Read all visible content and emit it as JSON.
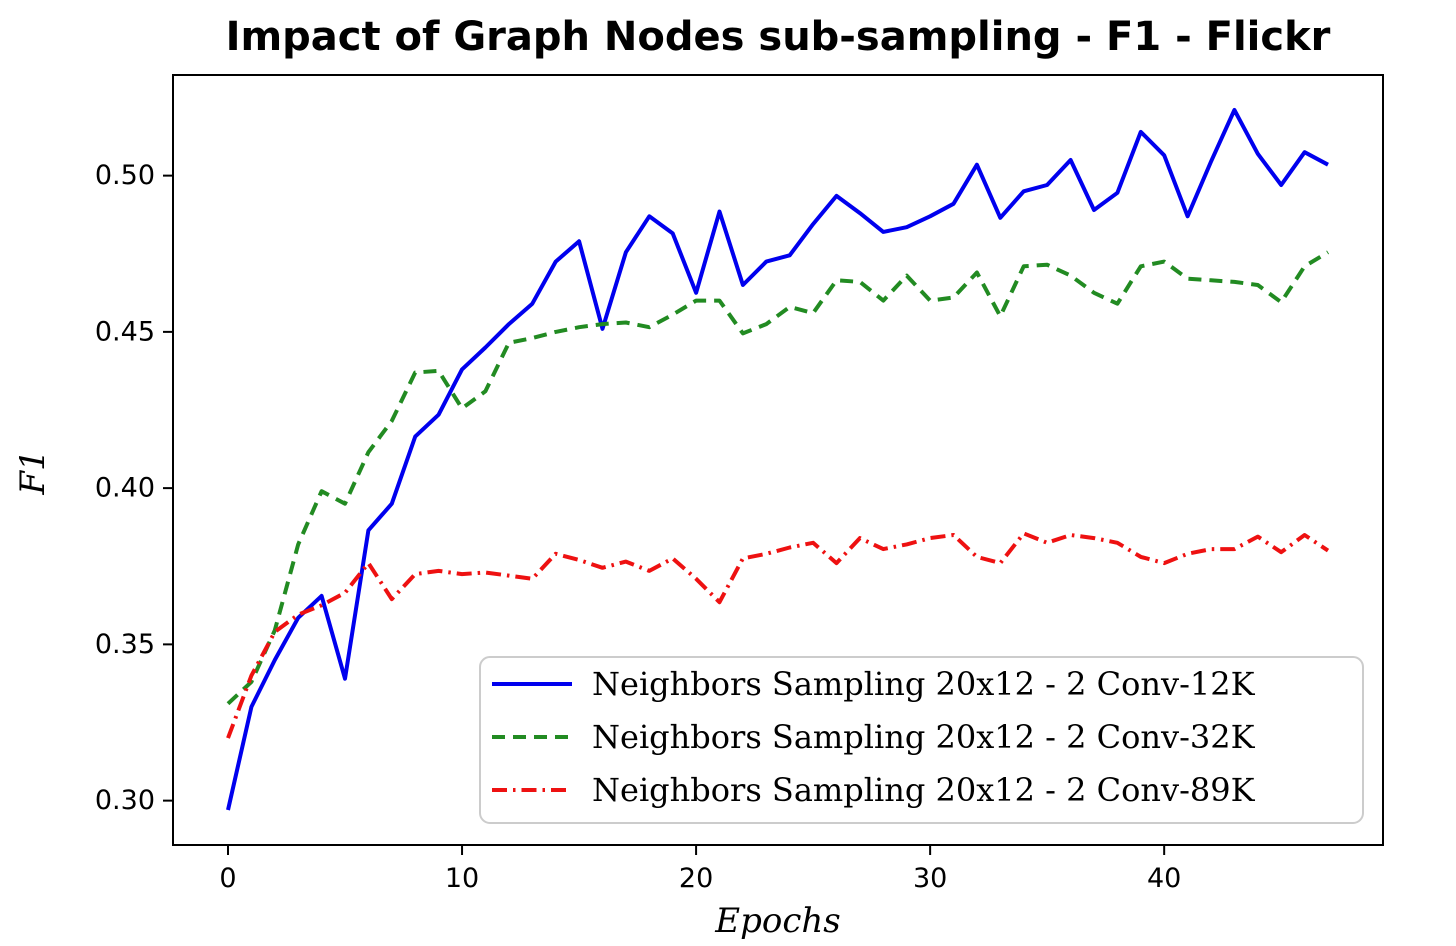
{
  "page": {
    "background": "#ffffff",
    "axis_color": "#000000",
    "legend_border_color": "#cccccc",
    "legend_background": "#ffffff"
  },
  "chart_data": {
    "type": "line",
    "title": "Impact of Graph Nodes sub-sampling - F1 - Flickr",
    "xlabel": "Epochs",
    "ylabel": "F1",
    "grid": false,
    "legend_position": "lower right inside",
    "xlim": [
      -2.35,
      49.35
    ],
    "ylim": [
      0.2858,
      0.5322
    ],
    "xticks": [
      0,
      10,
      20,
      30,
      40
    ],
    "xtick_labels": [
      "0",
      "10",
      "20",
      "30",
      "40"
    ],
    "yticks": [
      0.3,
      0.35,
      0.4,
      0.45,
      0.5
    ],
    "ytick_labels": [
      "0.30",
      "0.35",
      "0.40",
      "0.45",
      "0.50"
    ],
    "x": [
      0,
      1,
      2,
      3,
      4,
      5,
      6,
      7,
      8,
      9,
      10,
      11,
      12,
      13,
      14,
      15,
      16,
      17,
      18,
      19,
      20,
      21,
      22,
      23,
      24,
      25,
      26,
      27,
      28,
      29,
      30,
      31,
      32,
      33,
      34,
      35,
      36,
      37,
      38,
      39,
      40,
      41,
      42,
      43,
      44,
      45,
      46,
      47
    ],
    "series": [
      {
        "name": "Neighbors Sampling 20x12 - 2 Conv-12K",
        "color": "#0000ee",
        "style": "solid",
        "values": [
          0.297,
          0.33,
          0.345,
          0.3585,
          0.3655,
          0.339,
          0.3865,
          0.395,
          0.4165,
          0.4235,
          0.438,
          0.445,
          0.4525,
          0.459,
          0.4725,
          0.479,
          0.451,
          0.4755,
          0.487,
          0.4815,
          0.4625,
          0.4885,
          0.465,
          0.4725,
          0.4745,
          0.4845,
          0.4935,
          0.488,
          0.482,
          0.4835,
          0.487,
          0.491,
          0.5035,
          0.4865,
          0.495,
          0.497,
          0.505,
          0.489,
          0.4945,
          0.514,
          0.5065,
          0.487,
          0.5045,
          0.521,
          0.507,
          0.497,
          0.5075,
          0.5035
        ]
      },
      {
        "name": "Neighbors Sampling 20x12 - 2 Conv-32K",
        "color": "#228b22",
        "style": "dashed",
        "values": [
          0.331,
          0.338,
          0.3545,
          0.382,
          0.399,
          0.395,
          0.4115,
          0.4215,
          0.437,
          0.4375,
          0.4255,
          0.431,
          0.4465,
          0.448,
          0.45,
          0.4515,
          0.4525,
          0.453,
          0.4515,
          0.4555,
          0.46,
          0.46,
          0.4495,
          0.4525,
          0.458,
          0.456,
          0.4665,
          0.466,
          0.46,
          0.468,
          0.46,
          0.461,
          0.469,
          0.455,
          0.471,
          0.4715,
          0.468,
          0.4625,
          0.459,
          0.471,
          0.4725,
          0.467,
          0.4665,
          0.466,
          0.465,
          0.4595,
          0.471,
          0.4755
        ]
      },
      {
        "name": "Neighbors Sampling 20x12 - 2 Conv-89K",
        "color": "#ee1111",
        "style": "dashdot",
        "values": [
          0.32,
          0.34,
          0.354,
          0.3595,
          0.3625,
          0.3665,
          0.376,
          0.3645,
          0.3725,
          0.3735,
          0.3725,
          0.373,
          0.372,
          0.371,
          0.379,
          0.377,
          0.3745,
          0.3765,
          0.3735,
          0.3775,
          0.371,
          0.3635,
          0.3775,
          0.379,
          0.381,
          0.3825,
          0.376,
          0.384,
          0.3805,
          0.382,
          0.384,
          0.385,
          0.378,
          0.376,
          0.3855,
          0.3825,
          0.385,
          0.384,
          0.3825,
          0.378,
          0.376,
          0.379,
          0.3805,
          0.3805,
          0.3845,
          0.3795,
          0.385,
          0.38
        ]
      }
    ]
  }
}
